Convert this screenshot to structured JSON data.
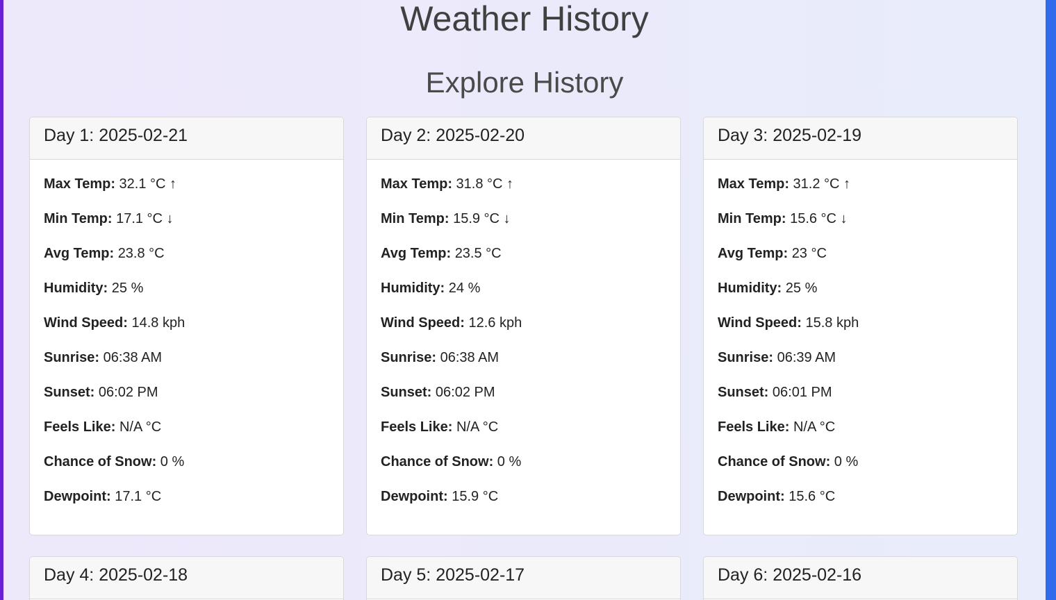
{
  "header": {
    "title": "Weather History",
    "subtitle": "Explore History"
  },
  "days": [
    {
      "title": "Day 1: 2025-02-21",
      "rows": [
        {
          "label": "Max Temp:",
          "value": "32.1 °C ↑"
        },
        {
          "label": "Min Temp:",
          "value": "17.1 °C ↓"
        },
        {
          "label": "Avg Temp:",
          "value": "23.8 °C"
        },
        {
          "label": "Humidity:",
          "value": "25 %"
        },
        {
          "label": "Wind Speed:",
          "value": "14.8 kph"
        },
        {
          "label": "Sunrise:",
          "value": "06:38 AM"
        },
        {
          "label": "Sunset:",
          "value": "06:02 PM"
        },
        {
          "label": "Feels Like:",
          "value": "N/A °C"
        },
        {
          "label": "Chance of Snow:",
          "value": "0 %"
        },
        {
          "label": "Dewpoint:",
          "value": "17.1 °C"
        }
      ]
    },
    {
      "title": "Day 2: 2025-02-20",
      "rows": [
        {
          "label": "Max Temp:",
          "value": "31.8 °C ↑"
        },
        {
          "label": "Min Temp:",
          "value": "15.9 °C ↓"
        },
        {
          "label": "Avg Temp:",
          "value": "23.5 °C"
        },
        {
          "label": "Humidity:",
          "value": "24 %"
        },
        {
          "label": "Wind Speed:",
          "value": "12.6 kph"
        },
        {
          "label": "Sunrise:",
          "value": "06:38 AM"
        },
        {
          "label": "Sunset:",
          "value": "06:02 PM"
        },
        {
          "label": "Feels Like:",
          "value": "N/A °C"
        },
        {
          "label": "Chance of Snow:",
          "value": "0 %"
        },
        {
          "label": "Dewpoint:",
          "value": "15.9 °C"
        }
      ]
    },
    {
      "title": "Day 3: 2025-02-19",
      "rows": [
        {
          "label": "Max Temp:",
          "value": "31.2 °C ↑"
        },
        {
          "label": "Min Temp:",
          "value": "15.6 °C ↓"
        },
        {
          "label": "Avg Temp:",
          "value": "23 °C"
        },
        {
          "label": "Humidity:",
          "value": "25 %"
        },
        {
          "label": "Wind Speed:",
          "value": "15.8 kph"
        },
        {
          "label": "Sunrise:",
          "value": "06:39 AM"
        },
        {
          "label": "Sunset:",
          "value": "06:01 PM"
        },
        {
          "label": "Feels Like:",
          "value": "N/A °C"
        },
        {
          "label": "Chance of Snow:",
          "value": "0 %"
        },
        {
          "label": "Dewpoint:",
          "value": "15.6 °C"
        }
      ]
    },
    {
      "title": "Day 4: 2025-02-18",
      "rows": []
    },
    {
      "title": "Day 5: 2025-02-17",
      "rows": []
    },
    {
      "title": "Day 6: 2025-02-16",
      "rows": []
    }
  ]
}
